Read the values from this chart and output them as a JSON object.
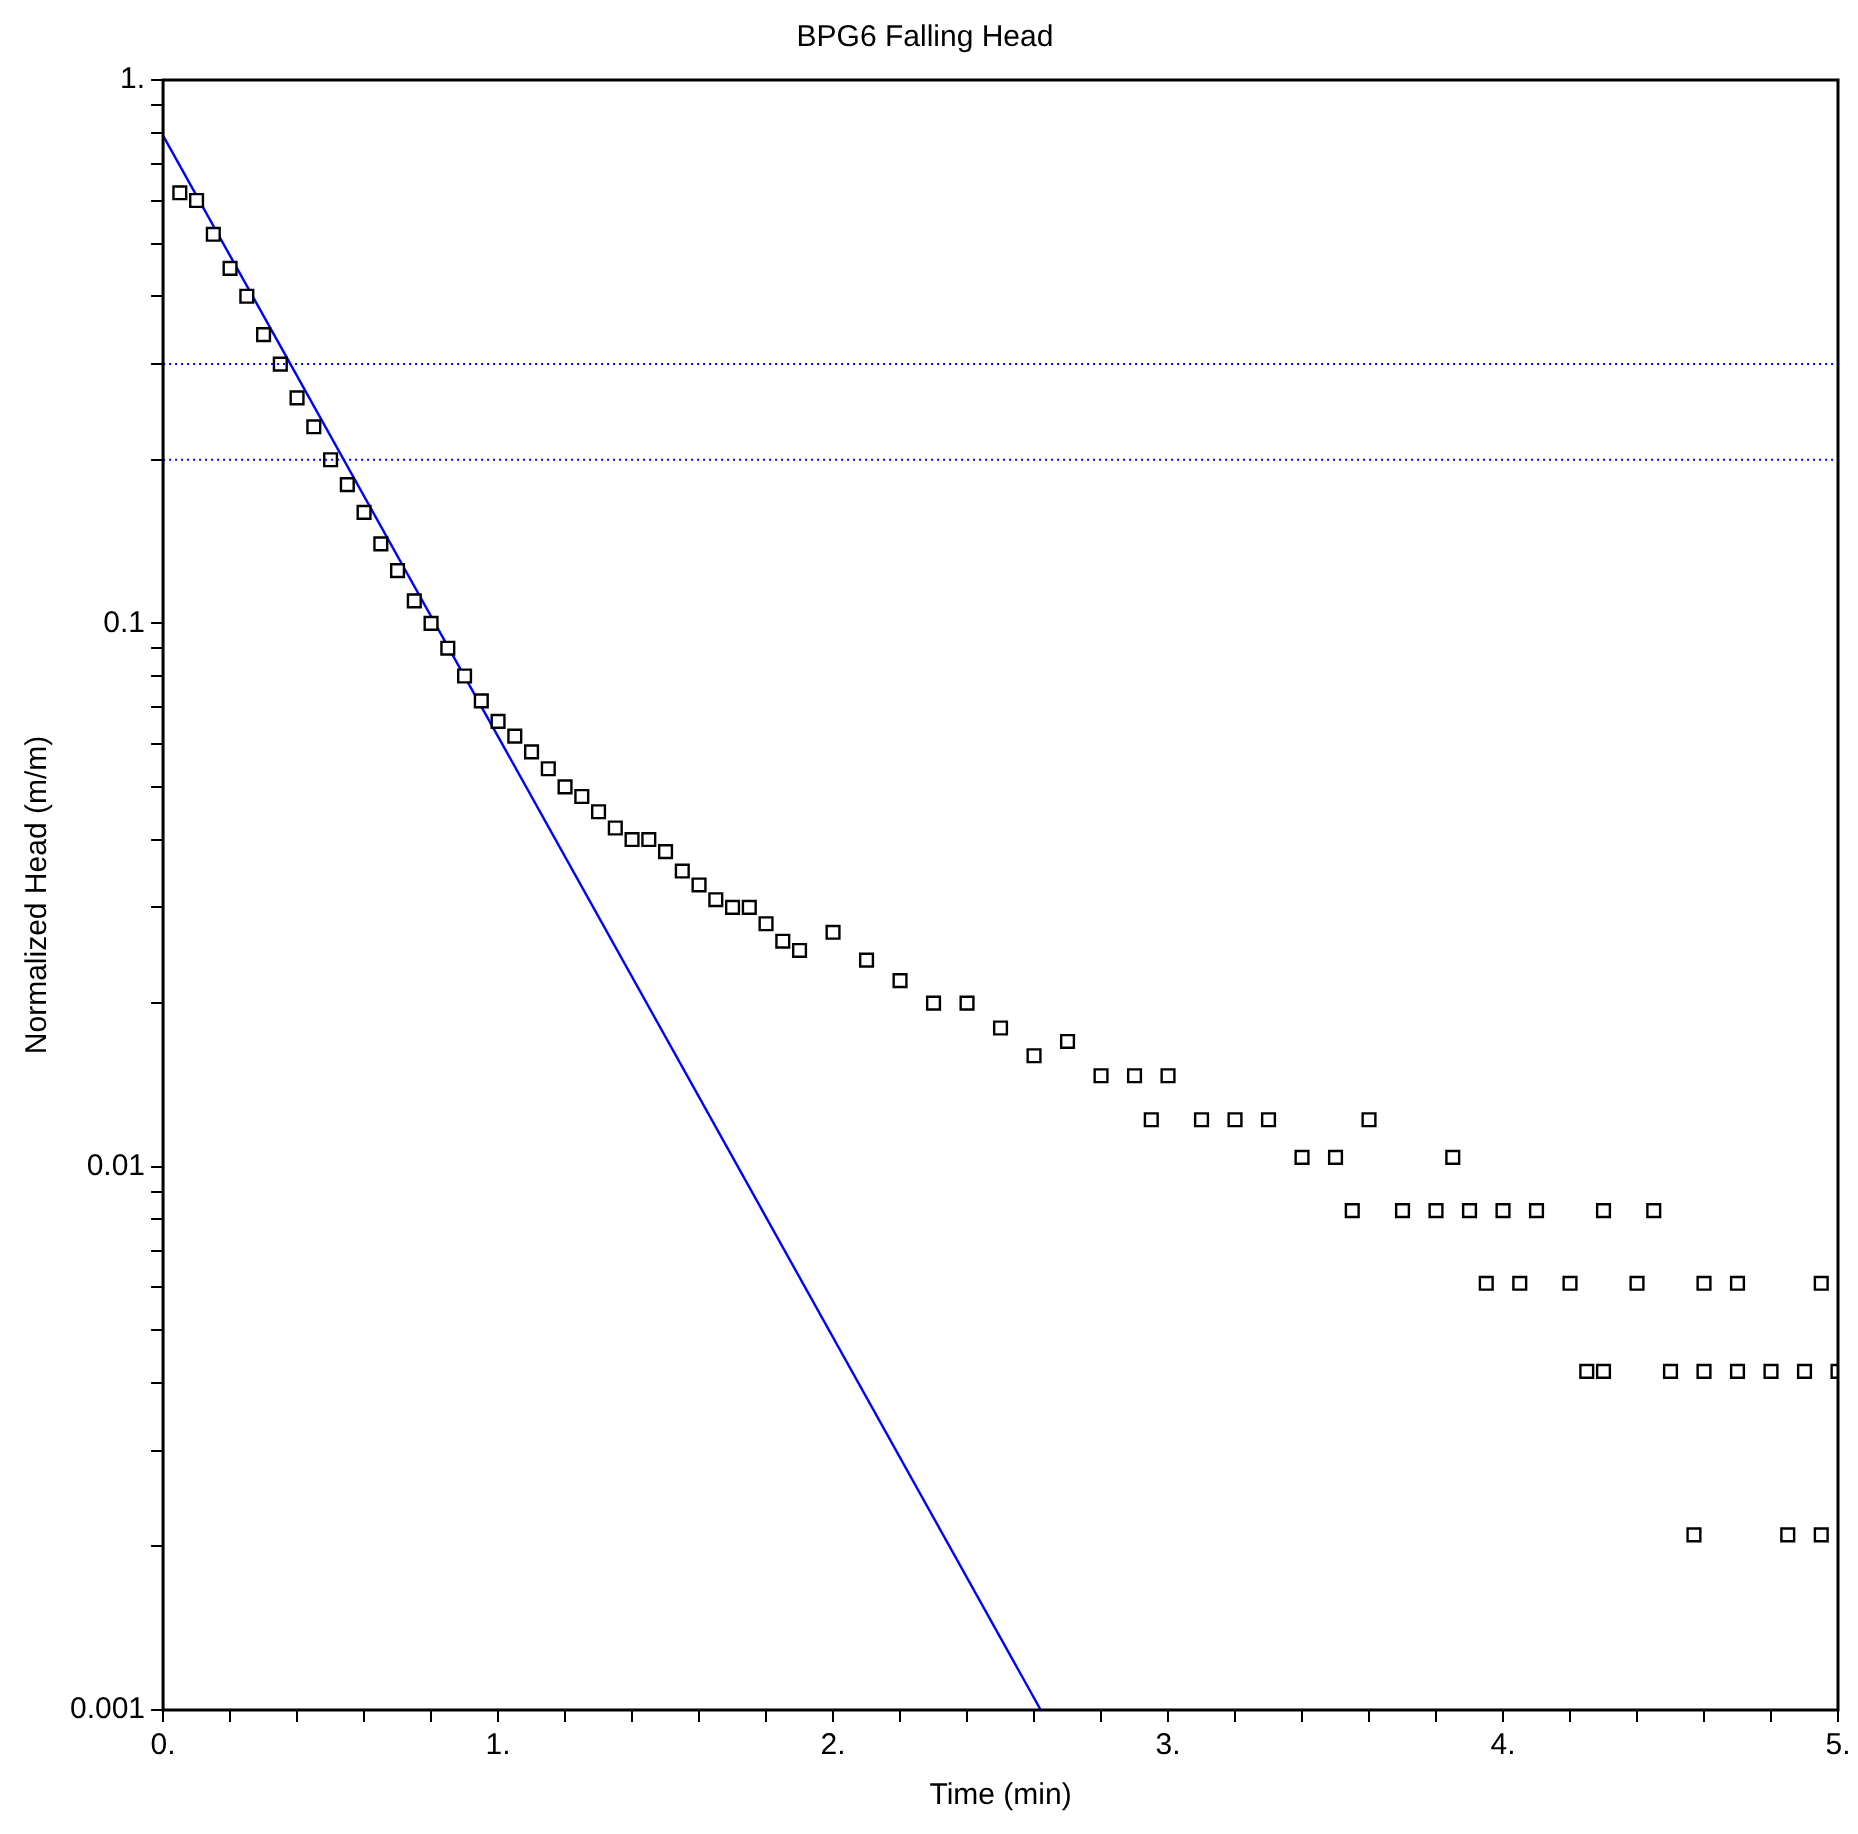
{
  "chart_data": {
    "type": "scatter",
    "title": "BPG6 Falling Head",
    "xlabel": "Time (min)",
    "ylabel": "Normalized Head (m/m)",
    "log": "y",
    "grid": false,
    "legend": false,
    "marker": "square",
    "xlim": [
      0,
      5
    ],
    "ylim": [
      0.001,
      1
    ],
    "xticks": [
      {
        "value": 0,
        "label": "0."
      },
      {
        "value": 0.2,
        "label": null
      },
      {
        "value": 0.4,
        "label": null
      },
      {
        "value": 0.6,
        "label": null
      },
      {
        "value": 0.8,
        "label": null
      },
      {
        "value": 1,
        "label": "1."
      },
      {
        "value": 1.2,
        "label": null
      },
      {
        "value": 1.4,
        "label": null
      },
      {
        "value": 1.6,
        "label": null
      },
      {
        "value": 1.8,
        "label": null
      },
      {
        "value": 2,
        "label": "2."
      },
      {
        "value": 2.2,
        "label": null
      },
      {
        "value": 2.4,
        "label": null
      },
      {
        "value": 2.6,
        "label": null
      },
      {
        "value": 2.8,
        "label": null
      },
      {
        "value": 3,
        "label": "3."
      },
      {
        "value": 3.2,
        "label": null
      },
      {
        "value": 3.4,
        "label": null
      },
      {
        "value": 3.6,
        "label": null
      },
      {
        "value": 3.8,
        "label": null
      },
      {
        "value": 4,
        "label": "4."
      },
      {
        "value": 4.2,
        "label": null
      },
      {
        "value": 4.4,
        "label": null
      },
      {
        "value": 4.6,
        "label": null
      },
      {
        "value": 4.8,
        "label": null
      },
      {
        "value": 5,
        "label": "5."
      }
    ],
    "yticks": [
      {
        "value": 0.001,
        "label": "0.001"
      },
      {
        "value": 0.002,
        "label": null
      },
      {
        "value": 0.003,
        "label": null
      },
      {
        "value": 0.004,
        "label": null
      },
      {
        "value": 0.005,
        "label": null
      },
      {
        "value": 0.006,
        "label": null
      },
      {
        "value": 0.007,
        "label": null
      },
      {
        "value": 0.008,
        "label": null
      },
      {
        "value": 0.009,
        "label": null
      },
      {
        "value": 0.01,
        "label": "0.01"
      },
      {
        "value": 0.02,
        "label": null
      },
      {
        "value": 0.03,
        "label": null
      },
      {
        "value": 0.04,
        "label": null
      },
      {
        "value": 0.05,
        "label": null
      },
      {
        "value": 0.06,
        "label": null
      },
      {
        "value": 0.07,
        "label": null
      },
      {
        "value": 0.08,
        "label": null
      },
      {
        "value": 0.09,
        "label": null
      },
      {
        "value": 0.1,
        "label": "0.1"
      },
      {
        "value": 0.2,
        "label": null
      },
      {
        "value": 0.3,
        "label": null
      },
      {
        "value": 0.4,
        "label": null
      },
      {
        "value": 0.5,
        "label": null
      },
      {
        "value": 0.6,
        "label": null
      },
      {
        "value": 0.7,
        "label": null
      },
      {
        "value": 0.8,
        "label": null
      },
      {
        "value": 0.9,
        "label": null
      },
      {
        "value": 1,
        "label": "1."
      }
    ],
    "ref_lines": [
      {
        "axis": "y",
        "value": 0.3,
        "color": "#0000ff",
        "line_style": "dotted"
      },
      {
        "axis": "y",
        "value": 0.2,
        "color": "#0000ff",
        "line_style": "dotted"
      }
    ],
    "series": [
      {
        "color": "#000000",
        "x": [
          0.05,
          0.1,
          0.15,
          0.2,
          0.25,
          0.3,
          0.35,
          0.4,
          0.45,
          0.5,
          0.55,
          0.6,
          0.65,
          0.7,
          0.75,
          0.8,
          0.85,
          0.9,
          0.95,
          1.0,
          1.05,
          1.1,
          1.15,
          1.2,
          1.25,
          1.3,
          1.35,
          1.4,
          1.45,
          1.5,
          1.55,
          1.6,
          1.65,
          1.7,
          1.75,
          1.8,
          1.85,
          1.9,
          2.0,
          2.1,
          2.2,
          2.3,
          2.4,
          2.5,
          2.6,
          2.7,
          2.8,
          2.9,
          2.95,
          3.0,
          3.1,
          3.2,
          3.3,
          3.4,
          3.5,
          3.55,
          3.6,
          3.7,
          3.8,
          3.85,
          3.9,
          4.0,
          4.1,
          4.3,
          4.45,
          3.95,
          4.05,
          4.2,
          4.4,
          4.6,
          4.7,
          4.95,
          4.25,
          4.3,
          4.5,
          4.6,
          4.7,
          4.8,
          4.9,
          5.0,
          4.57,
          4.85,
          4.95
        ],
        "values": [
          0.62,
          0.6,
          0.52,
          0.45,
          0.4,
          0.34,
          0.3,
          0.26,
          0.23,
          0.2,
          0.18,
          0.16,
          0.14,
          0.125,
          0.11,
          0.1,
          0.09,
          0.08,
          0.072,
          0.066,
          0.062,
          0.058,
          0.054,
          0.05,
          0.048,
          0.045,
          0.042,
          0.04,
          0.04,
          0.038,
          0.035,
          0.033,
          0.031,
          0.03,
          0.03,
          0.028,
          0.026,
          0.025,
          0.027,
          0.024,
          0.022,
          0.02,
          0.02,
          0.018,
          0.016,
          0.017,
          0.0147,
          0.0147,
          0.0122,
          0.0147,
          0.0122,
          0.0122,
          0.0122,
          0.0104,
          0.0104,
          0.0083,
          0.0122,
          0.0083,
          0.0083,
          0.0104,
          0.0083,
          0.0083,
          0.0083,
          0.0083,
          0.0083,
          0.0061,
          0.0061,
          0.0061,
          0.0061,
          0.0061,
          0.0061,
          0.0061,
          0.0042,
          0.0042,
          0.0042,
          0.0042,
          0.0042,
          0.0042,
          0.0042,
          0.0042,
          0.0021,
          0.0021,
          0.0021
        ]
      },
      {
        "type": "line",
        "color": "#0000ff",
        "marker": "none",
        "line_style": "solid",
        "x": [
          0,
          2.62
        ],
        "values": [
          0.79,
          0.001
        ]
      }
    ]
  }
}
